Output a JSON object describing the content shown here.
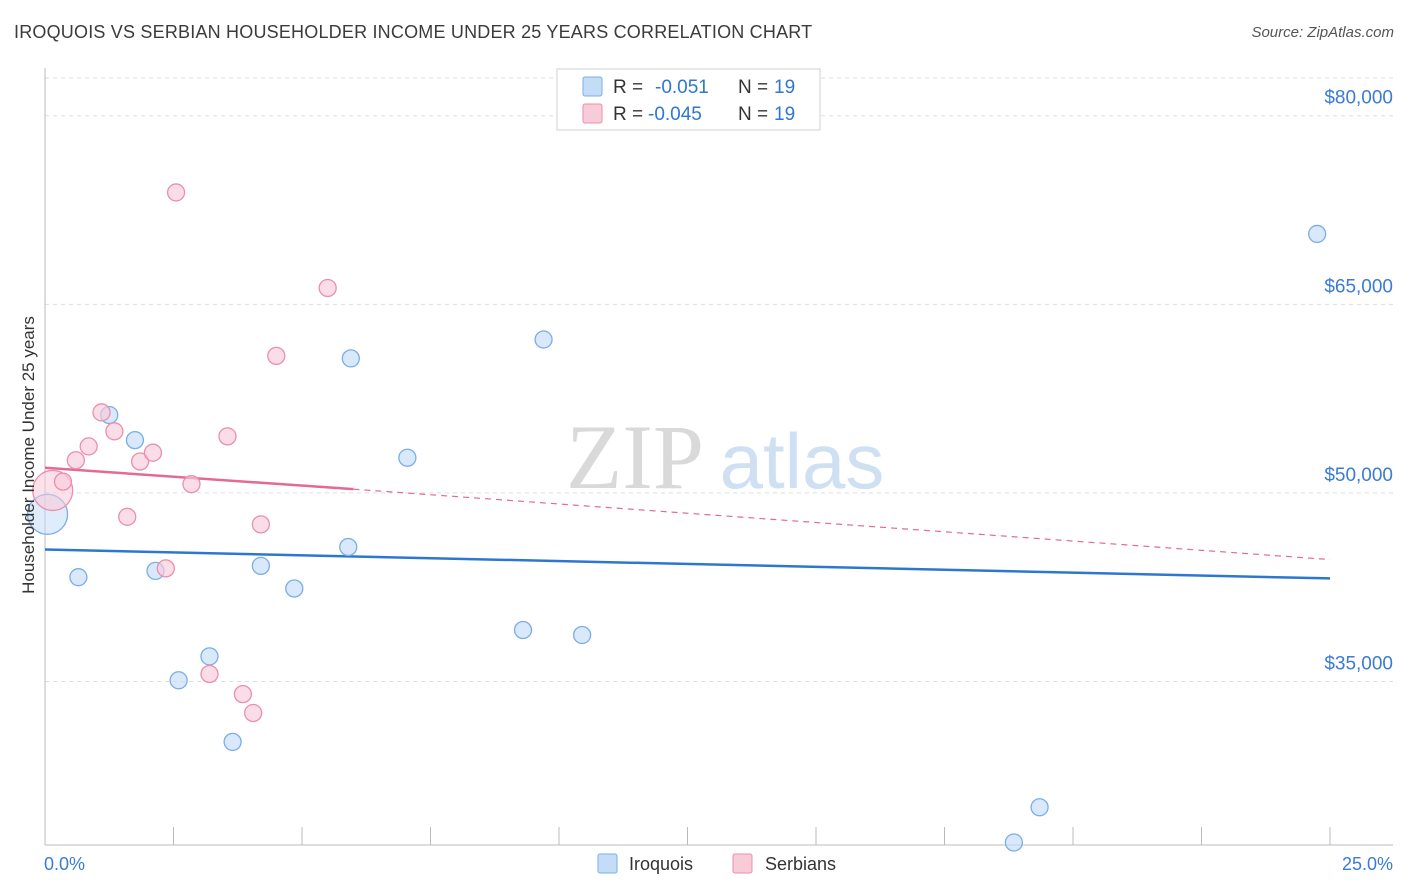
{
  "title": "IROQUOIS VS SERBIAN HOUSEHOLDER INCOME UNDER 25 YEARS CORRELATION CHART",
  "source": "Source: ZipAtlas.com",
  "watermark": {
    "zip": "ZIP",
    "atlas": "atlas"
  },
  "legend_top": [
    {
      "r_label": "R =",
      "r_value": "-0.051",
      "n_label": "N =",
      "n_value": "19"
    },
    {
      "r_label": "R =",
      "r_value": "-0.045",
      "n_label": "N =",
      "n_value": "19"
    }
  ],
  "chart_data": {
    "type": "scatter",
    "title": "IROQUOIS VS SERBIAN HOUSEHOLDER INCOME UNDER 25 YEARS CORRELATION CHART",
    "xlabel": "",
    "ylabel": "Householder Income Under 25 years",
    "xlim": [
      0,
      25
    ],
    "ylim": [
      22000,
      83000
    ],
    "x_tick_labels": [
      "0.0%",
      "25.0%"
    ],
    "y_ticks": [
      35000,
      50000,
      65000,
      80000
    ],
    "y_tick_labels": [
      "$35,000",
      "$50,000",
      "$65,000",
      "$80,000"
    ],
    "series": [
      {
        "name": "Iroquois",
        "color": "#7aaee8",
        "fill": "#c5dcf7",
        "line_color": "#2d77d0",
        "trend": {
          "x0": 0,
          "y0": 45500,
          "x1": 25,
          "y1": 43200
        },
        "points": [
          {
            "x": 0.05,
            "y": 48300,
            "big": true
          },
          {
            "x": 0.65,
            "y": 43300
          },
          {
            "x": 1.25,
            "y": 56200
          },
          {
            "x": 1.75,
            "y": 54200
          },
          {
            "x": 2.15,
            "y": 43800
          },
          {
            "x": 2.6,
            "y": 35100
          },
          {
            "x": 3.2,
            "y": 37000
          },
          {
            "x": 3.65,
            "y": 30200
          },
          {
            "x": 4.2,
            "y": 44200
          },
          {
            "x": 4.85,
            "y": 42400
          },
          {
            "x": 5.9,
            "y": 45700
          },
          {
            "x": 5.95,
            "y": 60700
          },
          {
            "x": 7.05,
            "y": 52800
          },
          {
            "x": 9.3,
            "y": 39100
          },
          {
            "x": 9.7,
            "y": 62200
          },
          {
            "x": 10.45,
            "y": 38700
          },
          {
            "x": 18.85,
            "y": 22200
          },
          {
            "x": 19.35,
            "y": 25000
          },
          {
            "x": 24.75,
            "y": 70600
          }
        ]
      },
      {
        "name": "Serbians",
        "color": "#eb8fac",
        "fill": "#f8cbd9",
        "line_color": "#e46a93",
        "trend": {
          "x0": 0,
          "y0": 52000,
          "x1": 6.0,
          "y1": 50300,
          "dash_x1": 25,
          "dash_y1": 44700
        },
        "points": [
          {
            "x": 0.15,
            "y": 50200,
            "big": true
          },
          {
            "x": 0.35,
            "y": 50900
          },
          {
            "x": 0.6,
            "y": 52600
          },
          {
            "x": 0.85,
            "y": 53700
          },
          {
            "x": 1.1,
            "y": 56400
          },
          {
            "x": 1.35,
            "y": 54900
          },
          {
            "x": 1.6,
            "y": 48100
          },
          {
            "x": 1.85,
            "y": 52500
          },
          {
            "x": 2.1,
            "y": 53200
          },
          {
            "x": 2.35,
            "y": 44000
          },
          {
            "x": 2.55,
            "y": 73900
          },
          {
            "x": 2.85,
            "y": 50700
          },
          {
            "x": 3.2,
            "y": 35600
          },
          {
            "x": 3.55,
            "y": 54500
          },
          {
            "x": 3.85,
            "y": 34000
          },
          {
            "x": 4.05,
            "y": 32500
          },
          {
            "x": 4.2,
            "y": 47500
          },
          {
            "x": 4.5,
            "y": 60900
          },
          {
            "x": 5.5,
            "y": 66300
          }
        ]
      }
    ]
  }
}
